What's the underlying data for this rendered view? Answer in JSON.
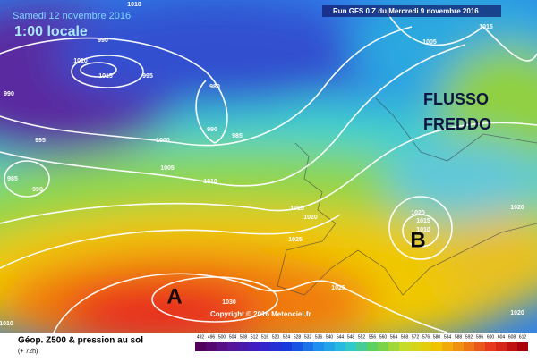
{
  "header": {
    "date": "Samedi 12 novembre 2016",
    "time": "1:00 locale",
    "run": "Run GFS 0 Z du Mercredi 9 novembre 2016"
  },
  "map": {
    "annotations": [
      "FLUSSO",
      "FREDDO"
    ],
    "pressure_centers": [
      "A",
      "B"
    ],
    "isobar_labels": [
      1010,
      990,
      1010,
      1015,
      995,
      990,
      995,
      985,
      990,
      980,
      990,
      985,
      1000,
      1005,
      1010,
      1015,
      1020,
      1025,
      1030,
      1025,
      1005,
      1015,
      1020,
      1015,
      1010,
      1020,
      1010,
      1020
    ],
    "copyright": "Copyright © 2016 Meteociel.fr"
  },
  "legend": {
    "title": "Géop. Z500 & pression au sol",
    "subtitle": "(+ 72h)",
    "scale": [
      492,
      496,
      500,
      504,
      508,
      512,
      516,
      520,
      524,
      528,
      532,
      536,
      540,
      544,
      548,
      552,
      556,
      560,
      564,
      568,
      572,
      576,
      580,
      584,
      588,
      592,
      596,
      600,
      604,
      608,
      612
    ]
  }
}
